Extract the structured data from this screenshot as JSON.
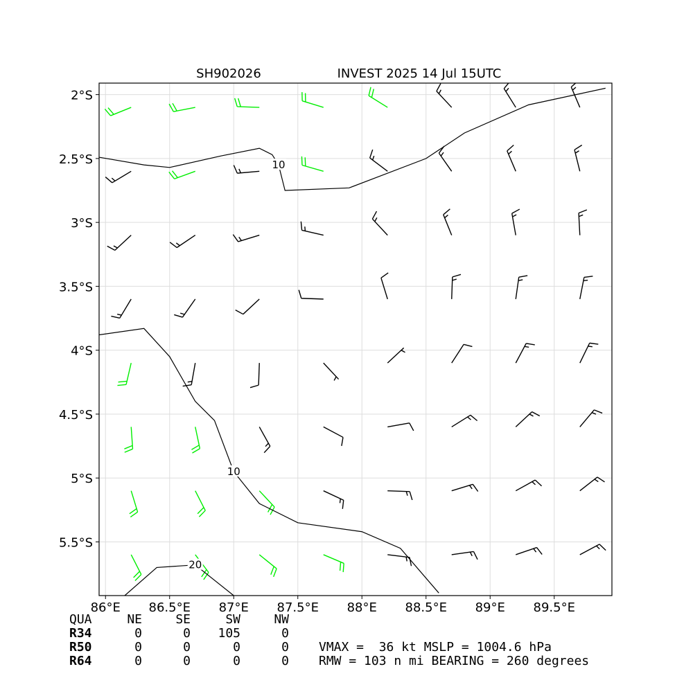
{
  "chart_data": {
    "type": "wind_barbs",
    "title_left": "SH902026",
    "title_right": "INVEST 2025 14 Jul 15UTC",
    "xlim": [
      85.95,
      89.95
    ],
    "ylim": [
      -5.92,
      -1.91
    ],
    "xticks": [
      {
        "value": 86,
        "label": "86°E"
      },
      {
        "value": 86.5,
        "label": "86.5°E"
      },
      {
        "value": 87,
        "label": "87°E"
      },
      {
        "value": 87.5,
        "label": "87.5°E"
      },
      {
        "value": 88,
        "label": "88°E"
      },
      {
        "value": 88.5,
        "label": "88.5°E"
      },
      {
        "value": 89,
        "label": "89°E"
      },
      {
        "value": 89.5,
        "label": "89.5°E"
      }
    ],
    "yticks": [
      {
        "value": -2,
        "label": "2°S"
      },
      {
        "value": -2.5,
        "label": "2.5°S"
      },
      {
        "value": -3,
        "label": "3°S"
      },
      {
        "value": -3.5,
        "label": "3.5°S"
      },
      {
        "value": -4,
        "label": "4°S"
      },
      {
        "value": -4.5,
        "label": "4.5°S"
      },
      {
        "value": -5,
        "label": "5°S"
      },
      {
        "value": -5.5,
        "label": "5.5°S"
      }
    ],
    "grid": true,
    "low_color": "#000000",
    "high_color": "#00ee00",
    "high_speed_min": 20,
    "barbs": {
      "lon": [
        86.2,
        86.7,
        87.2,
        87.7,
        88.2,
        88.7,
        89.2,
        89.7
      ],
      "lat": [
        -2.1,
        -2.6,
        -3.1,
        -3.6,
        -4.1,
        -4.6,
        -5.1,
        -5.6
      ],
      "speed": [
        [
          20,
          20,
          20,
          20,
          20,
          15,
          15,
          15
        ],
        [
          15,
          20,
          15,
          20,
          15,
          15,
          15,
          15
        ],
        [
          15,
          15,
          15,
          15,
          15,
          15,
          15,
          15
        ],
        [
          15,
          15,
          10,
          10,
          10,
          15,
          15,
          15
        ],
        [
          20,
          15,
          10,
          5,
          5,
          10,
          15,
          15
        ],
        [
          20,
          20,
          15,
          10,
          10,
          15,
          15,
          15
        ],
        [
          20,
          20,
          20,
          15,
          15,
          15,
          15,
          15
        ],
        [
          20,
          20,
          20,
          20,
          15,
          15,
          15,
          15
        ]
      ],
      "direction": [
        [
          248,
          259,
          272,
          287,
          302,
          317,
          328,
          337
        ],
        [
          239,
          250,
          265,
          286,
          307,
          325,
          337,
          346
        ],
        [
          227,
          236,
          253,
          283,
          317,
          338,
          350,
          357
        ],
        [
          211,
          215,
          227,
          272,
          343,
          2,
          8,
          11
        ],
        [
          193,
          190,
          182,
          137,
          47,
          33,
          28,
          26
        ],
        [
          176,
          168,
          151,
          118,
          80,
          58,
          47,
          40
        ],
        [
          163,
          153,
          137,
          115,
          92,
          73,
          61,
          52
        ],
        [
          153,
          143,
          129,
          113,
          97,
          82,
          71,
          62
        ]
      ]
    },
    "contours": [
      {
        "level": 10,
        "lon": [
          85.95,
          86.3,
          86.5,
          86.9,
          87.2,
          87.3,
          87.35,
          87.4,
          87.9,
          88.5,
          88.8,
          89.3,
          89.9
        ],
        "lat": [
          -2.49,
          -2.55,
          -2.57,
          -2.48,
          -2.42,
          -2.47,
          -2.55,
          -2.75,
          -2.73,
          -2.5,
          -2.3,
          -2.08,
          -1.95
        ]
      },
      {
        "level": 10,
        "lon": [
          85.95,
          86.3,
          86.5,
          86.7,
          86.85,
          87.0,
          87.2,
          87.5,
          88.0,
          88.3,
          88.6
        ],
        "lat": [
          -3.88,
          -3.83,
          -4.05,
          -4.4,
          -4.55,
          -4.95,
          -5.2,
          -5.35,
          -5.42,
          -5.55,
          -5.9
        ]
      },
      {
        "level": 20,
        "lon": [
          86.15,
          86.4,
          86.7,
          87.0
        ],
        "lat": [
          -5.92,
          -5.7,
          -5.68,
          -5.92
        ]
      }
    ]
  },
  "info": {
    "header": [
      "QUA",
      "NE",
      "SE",
      "SW",
      "NW"
    ],
    "rows": [
      [
        "R34",
        0,
        0,
        105,
        0
      ],
      [
        "R50",
        0,
        0,
        0,
        0
      ],
      [
        "R64",
        0,
        0,
        0,
        0
      ]
    ],
    "line1": "VMAX =  36 kt MSLP = 1004.6 hPa",
    "line2": "RMW = 103 n mi BEARING = 260 degrees"
  }
}
